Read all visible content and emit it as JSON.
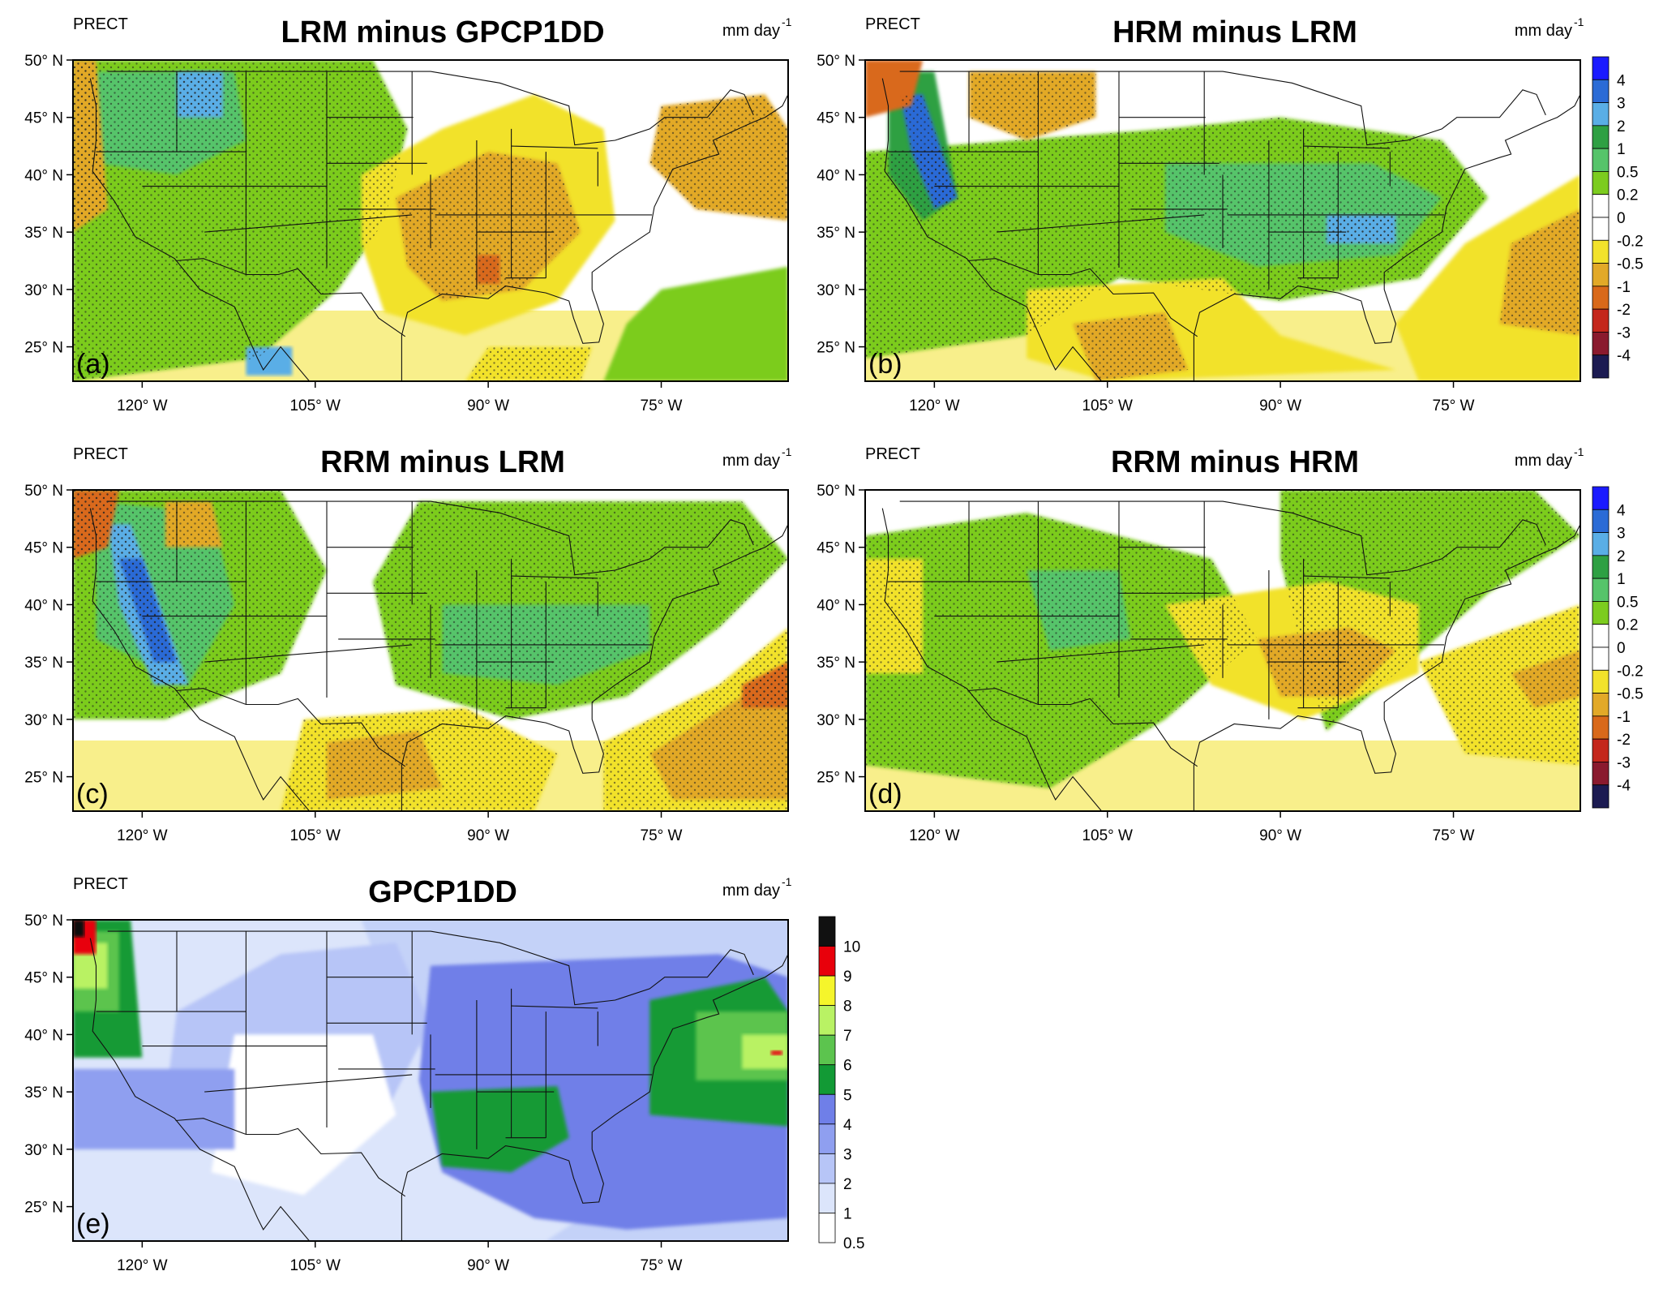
{
  "panels": [
    {
      "id": "a",
      "title": "LRM minus GPCP1DD",
      "variable": "PRECT",
      "units": "mm day",
      "units_exp": "-1",
      "label": "(a)",
      "kind": "diff",
      "colorbar": false
    },
    {
      "id": "b",
      "title": "HRM minus LRM",
      "variable": "PRECT",
      "units": "mm day",
      "units_exp": "-1",
      "label": "(b)",
      "kind": "diff",
      "colorbar": true
    },
    {
      "id": "c",
      "title": "RRM minus LRM",
      "variable": "PRECT",
      "units": "mm day",
      "units_exp": "-1",
      "label": "(c)",
      "kind": "diff",
      "colorbar": false
    },
    {
      "id": "d",
      "title": "RRM minus HRM",
      "variable": "PRECT",
      "units": "mm day",
      "units_exp": "-1",
      "label": "(d)",
      "kind": "diff",
      "colorbar": true
    },
    {
      "id": "e",
      "title": "GPCP1DD",
      "variable": "PRECT",
      "units": "mm day",
      "units_exp": "-1",
      "label": "(e)",
      "kind": "abs",
      "colorbar": true
    }
  ],
  "lat_ticks": [
    "50° N",
    "45° N",
    "40° N",
    "35° N",
    "30° N",
    "25° N"
  ],
  "lat_values": [
    50,
    45,
    40,
    35,
    30,
    25
  ],
  "lon_ticks": [
    "120° W",
    "105° W",
    "90° W",
    "75° W"
  ],
  "lon_values": [
    -120,
    -105,
    -90,
    -75
  ],
  "lon_range": [
    -126,
    -64
  ],
  "lat_range": [
    22,
    50
  ],
  "diff_colorbar": {
    "labels": [
      "4",
      "3",
      "2",
      "1",
      "0.5",
      "0.2",
      "0",
      "-0.2",
      "-0.5",
      "-1",
      "-2",
      "-3",
      "-4"
    ],
    "colors": [
      "#1a1aff",
      "#2b6bd6",
      "#5aaee6",
      "#2ea043",
      "#56c46a",
      "#7ccc1f",
      "#ffffff",
      "#ffffff",
      "#f2e22b",
      "#e2a928",
      "#d9691a",
      "#c4271c",
      "#8a1a2e",
      "#1c1b52"
    ]
  },
  "abs_colorbar": {
    "labels": [
      "10",
      "9",
      "8",
      "7",
      "6",
      "5",
      "4",
      "3",
      "2",
      "1",
      "0.5"
    ],
    "colors": [
      "#111111",
      "#e8000b",
      "#f5f52b",
      "#b9f264",
      "#5cc44e",
      "#129a35",
      "#6f7fe8",
      "#8f9ff0",
      "#b7c5f7",
      "#dce5fb",
      "#ffffff"
    ]
  }
}
